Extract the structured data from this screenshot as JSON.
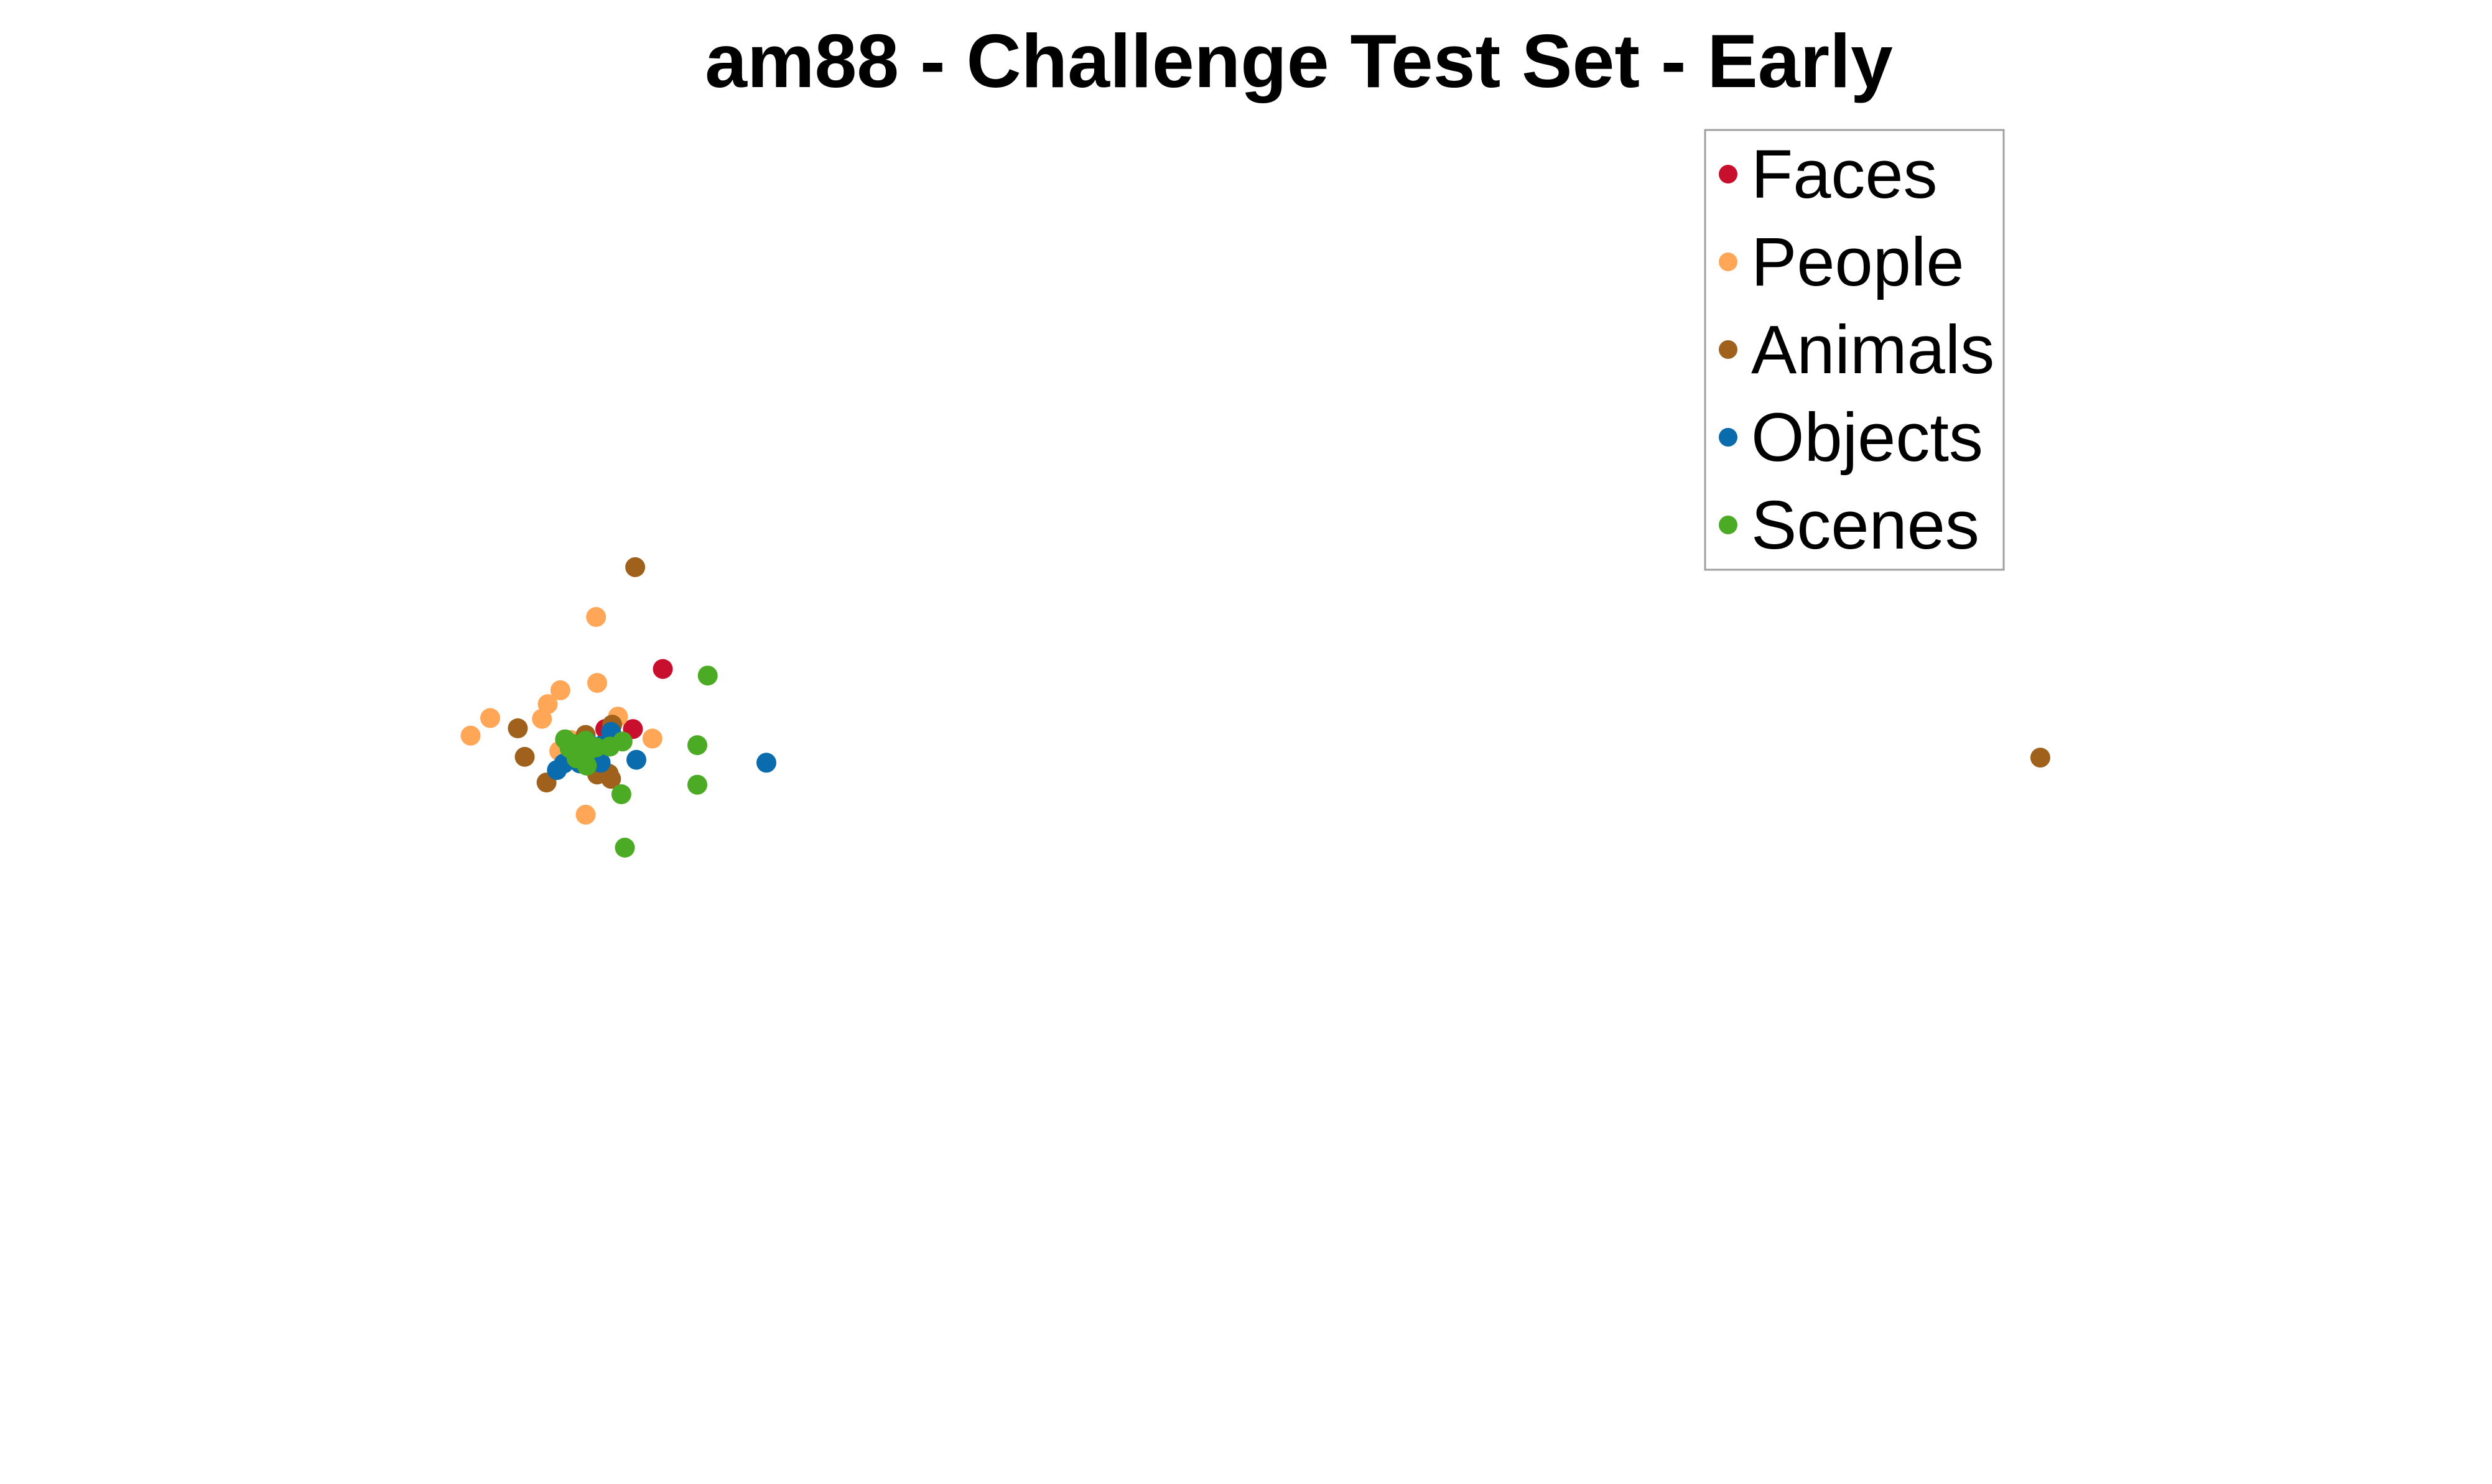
{
  "chart_data": {
    "type": "scatter",
    "title": "am88 - Challenge Test Set - Early",
    "xlabel": "",
    "ylabel": "",
    "axes_visible": false,
    "grid": false,
    "legend_position": "top-right",
    "xlim": [
      -1.0,
      1.0
    ],
    "ylim": [
      -1.0,
      1.0
    ],
    "series": [
      {
        "name": "Faces",
        "color": "#C8102E",
        "points": [
          [
            -0.57,
            0.112
          ],
          [
            -0.596,
            0.03
          ],
          [
            -0.62,
            0.03
          ]
        ]
      },
      {
        "name": "People",
        "color": "#FFA657",
        "points": [
          [
            -0.628,
            0.183
          ],
          [
            -0.659,
            0.083
          ],
          [
            -0.649,
            0.009
          ],
          [
            -0.627,
            0.093
          ],
          [
            -0.579,
            0.017
          ],
          [
            -0.65,
            0.015
          ],
          [
            -0.634,
            -0.004
          ],
          [
            -0.675,
            0.044
          ],
          [
            -0.67,
            0.064
          ],
          [
            -0.72,
            0.045
          ],
          [
            -0.737,
            0.021
          ],
          [
            -0.609,
            0.047
          ],
          [
            -0.637,
            -0.087
          ],
          [
            -0.66,
            0.0
          ]
        ]
      },
      {
        "name": "Animals",
        "color": "#A0611C",
        "points": [
          [
            -0.594,
            0.251
          ],
          [
            -0.614,
            0.036
          ],
          [
            -0.624,
            0.003
          ],
          [
            -0.637,
            0.022
          ],
          [
            -0.615,
            -0.038
          ],
          [
            -0.671,
            -0.043
          ],
          [
            -0.69,
            -0.008
          ],
          [
            -0.696,
            0.031
          ],
          [
            -0.627,
            -0.032
          ],
          [
            -0.617,
            -0.031
          ],
          [
            0.627,
            -0.009
          ]
        ]
      },
      {
        "name": "Objects",
        "color": "#0A6BAD",
        "points": [
          [
            -0.615,
            0.026
          ],
          [
            -0.624,
            0.007
          ],
          [
            -0.646,
            -0.006
          ],
          [
            -0.662,
            -0.026
          ],
          [
            -0.656,
            -0.017
          ],
          [
            -0.593,
            -0.012
          ],
          [
            -0.624,
            -0.016
          ],
          [
            -0.642,
            -0.017
          ],
          [
            -0.636,
            0.013
          ],
          [
            -0.48,
            -0.016
          ]
        ]
      },
      {
        "name": "Scenes",
        "color": "#4CAB24",
        "points": [
          [
            -0.531,
            0.103
          ],
          [
            -0.54,
            0.008
          ],
          [
            -0.54,
            -0.046
          ],
          [
            -0.605,
            0.013
          ],
          [
            -0.606,
            -0.059
          ],
          [
            -0.603,
            -0.132
          ],
          [
            -0.616,
            0.006
          ],
          [
            -0.628,
            0.005
          ],
          [
            -0.637,
            0.014
          ],
          [
            -0.642,
            0.0
          ],
          [
            -0.649,
            0.01
          ],
          [
            -0.637,
            -0.004
          ],
          [
            -0.645,
            -0.01
          ],
          [
            -0.651,
            0.004
          ],
          [
            -0.636,
            -0.02
          ],
          [
            -0.655,
            0.016
          ]
        ]
      }
    ]
  }
}
